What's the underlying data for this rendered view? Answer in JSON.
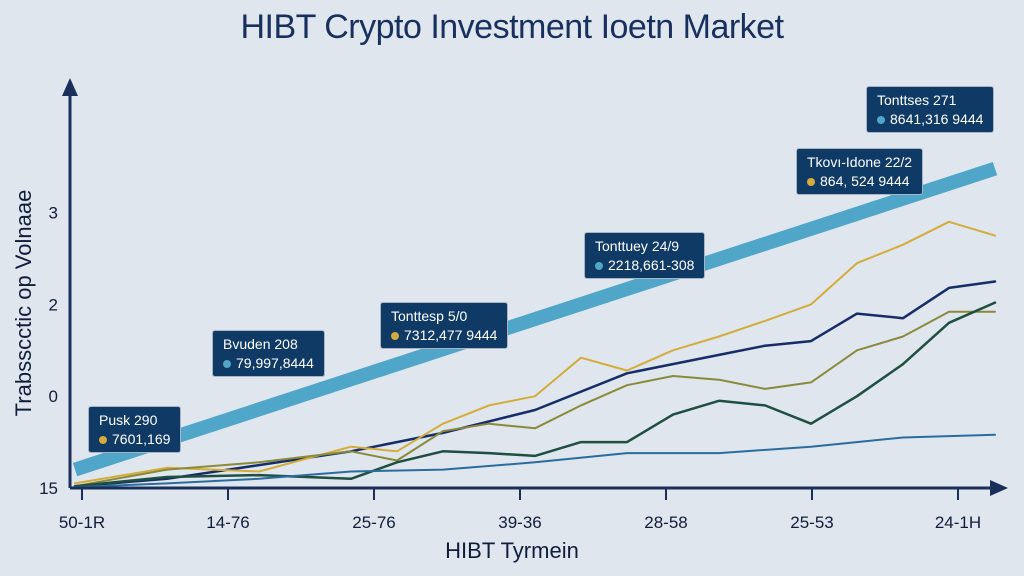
{
  "chart_data": {
    "type": "line",
    "title": "HIBT Crypto Investment Ioetn Market",
    "xlabel": "HIBT Tyrmein",
    "ylabel": "Trabsscctic op Volnaae",
    "x_ticks": [
      "50-1R",
      "14-76",
      "25-76",
      "39-36",
      "28-58",
      "25-53",
      "24-1H"
    ],
    "y_ticks": [
      {
        "label": "15",
        "value": -1
      },
      {
        "label": "0",
        "value": 0
      },
      {
        "label": "2",
        "value": 1
      },
      {
        "label": "3",
        "value": 2
      }
    ],
    "xlim": [
      0,
      10
    ],
    "ylim": [
      -1,
      2.9
    ],
    "grid": false,
    "series": [
      {
        "color": "#4fa6c8",
        "width": 14,
        "x": [
          0,
          10
        ],
        "y": [
          -0.8,
          2.48
        ]
      },
      {
        "color": "#162d6a",
        "width": 2.5,
        "x": [
          0,
          1,
          2,
          3,
          4,
          5,
          6,
          7,
          7.5,
          8,
          8.5,
          9,
          9.5,
          10
        ],
        "y": [
          -0.98,
          -0.9,
          -0.75,
          -0.6,
          -0.4,
          -0.15,
          0.25,
          0.45,
          0.55,
          0.6,
          0.9,
          0.85,
          1.18,
          1.25
        ]
      },
      {
        "color": "#d4ac3a",
        "width": 2,
        "x": [
          0,
          1,
          2,
          3,
          3.5,
          4,
          4.5,
          5,
          5.5,
          6,
          6.5,
          7,
          7.5,
          8,
          8.5,
          9,
          9.5,
          10
        ],
        "y": [
          -0.95,
          -0.78,
          -0.82,
          -0.55,
          -0.6,
          -0.3,
          -0.1,
          0.0,
          0.42,
          0.28,
          0.5,
          0.65,
          0.82,
          1.0,
          1.45,
          1.65,
          1.9,
          1.75
        ]
      },
      {
        "color": "#8a8a3a",
        "width": 2,
        "x": [
          0,
          1,
          2,
          3,
          3.5,
          4,
          4.5,
          5,
          5.5,
          6,
          6.5,
          7,
          7.5,
          8,
          8.5,
          9,
          9.5,
          10
        ],
        "y": [
          -0.98,
          -0.8,
          -0.72,
          -0.6,
          -0.7,
          -0.38,
          -0.3,
          -0.35,
          -0.1,
          0.12,
          0.22,
          0.18,
          0.08,
          0.15,
          0.5,
          0.65,
          0.92,
          0.92
        ]
      },
      {
        "color": "#1f4f3f",
        "width": 2.5,
        "x": [
          0,
          1,
          2,
          3,
          3.5,
          4,
          4.5,
          5,
          5.5,
          6,
          6.5,
          7,
          7.5,
          8,
          8.5,
          9,
          9.5,
          10
        ],
        "y": [
          -0.98,
          -0.88,
          -0.86,
          -0.9,
          -0.72,
          -0.6,
          -0.62,
          -0.65,
          -0.5,
          -0.5,
          -0.2,
          -0.05,
          -0.1,
          -0.3,
          0.0,
          0.35,
          0.8,
          1.02
        ]
      },
      {
        "color": "#2b6c9e",
        "width": 2,
        "x": [
          0,
          1,
          2,
          3,
          4,
          5,
          6,
          7,
          8,
          9,
          10
        ],
        "y": [
          -0.99,
          -0.95,
          -0.9,
          -0.82,
          -0.8,
          -0.72,
          -0.62,
          -0.62,
          -0.55,
          -0.45,
          -0.42
        ]
      }
    ],
    "annotations": [
      {
        "label": "Pusk 290",
        "value": "7601,169",
        "dot_color": "#d4ac3a"
      },
      {
        "label": "Bvuden 208",
        "value": "79,997,8444",
        "dot_color": "#4fa6c8"
      },
      {
        "label": "Tonttesp 5/0",
        "value": "7312,477 9444",
        "dot_color": "#d4ac3a"
      },
      {
        "label": "Tonttuey 24/9",
        "value": "2218,661-308",
        "dot_color": "#4fa6c8"
      },
      {
        "label": "Tkovı-Idone 22/2",
        "value": "864, 524 9444",
        "dot_color": "#d4ac3a"
      },
      {
        "label": "Tonttses 271",
        "value": "8641,316 9444",
        "dot_color": "#4fa6c8"
      }
    ]
  }
}
